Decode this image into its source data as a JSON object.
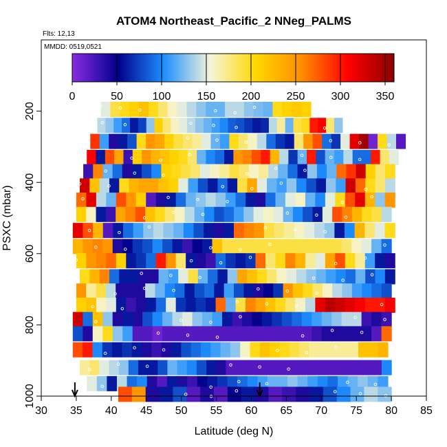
{
  "chart_data": {
    "type": "heatmap",
    "title": "ATOM4 Northeast_Pacific_2 NNeg_PALMS",
    "flights_label": "Flts: 12,13",
    "dates_label": "MMDD: 0519,0521",
    "xlabel": "Latitude (deg N)",
    "ylabel": "PSXC (mbar)",
    "xlim": [
      30,
      85
    ],
    "ylim": [
      1000,
      0
    ],
    "x_ticks": [
      "30",
      "35",
      "40",
      "45",
      "50",
      "55",
      "60",
      "65",
      "70",
      "75",
      "80",
      "85"
    ],
    "y_ticks": [
      "200",
      "400",
      "600",
      "800",
      "1000"
    ],
    "colorbar": {
      "min": 0,
      "max": 360,
      "ticks": [
        "0",
        "50",
        "100",
        "150",
        "200",
        "250",
        "300",
        "350"
      ],
      "colors": [
        "#8a2be2",
        "#00008b",
        "#1e90ff",
        "#f5f5dc",
        "#ffd700",
        "#ff8c00",
        "#ff0000",
        "#8b0000"
      ]
    },
    "markers": {
      "arrows_at_latitude": [
        34.8,
        61.2
      ]
    },
    "series": [
      {
        "p": 195,
        "lat": [
          38.5,
          68.5
        ],
        "v": [
          150,
          190,
          200,
          210,
          220,
          200,
          180,
          160,
          150,
          140,
          130,
          120,
          120,
          140,
          140,
          130,
          125,
          120,
          200,
          210,
          215,
          210
        ]
      },
      {
        "p": 240,
        "lat": [
          38.0,
          73.0
        ],
        "v": [
          140,
          130,
          110,
          90,
          60,
          75,
          130,
          210,
          180,
          160,
          150,
          140,
          130,
          120,
          110,
          100,
          85,
          80,
          70,
          60,
          65,
          140,
          170,
          120,
          190,
          200,
          300,
          310,
          180,
          130
        ]
      },
      {
        "p": 285,
        "lat": [
          37.0,
          82.0
        ],
        "v": [
          290,
          110,
          40,
          60,
          80,
          200,
          250,
          240,
          210,
          190,
          180,
          170,
          150,
          120,
          110,
          200,
          180,
          160,
          140,
          90,
          70,
          60,
          180,
          250,
          280,
          90,
          70,
          150,
          320,
          350,
          10,
          200,
          140,
          20
        ]
      },
      {
        "p": 330,
        "lat": [
          36.5,
          81.0
        ],
        "v": [
          310,
          60,
          280,
          240,
          30,
          210,
          250,
          230,
          220,
          210,
          200,
          180,
          120,
          100,
          90,
          60,
          250,
          260,
          280,
          300,
          230,
          140,
          70,
          120,
          300,
          80,
          120,
          110,
          140,
          90,
          90,
          300,
          180,
          150
        ]
      },
      {
        "p": 370,
        "lat": [
          36.0,
          80.5
        ],
        "v": [
          30,
          260,
          120,
          90,
          40,
          60,
          80,
          100,
          210,
          200,
          190,
          180,
          150,
          160,
          170,
          190,
          180,
          160,
          170,
          140,
          120,
          90,
          60,
          130,
          100,
          120,
          270,
          290,
          330,
          210,
          180,
          200
        ]
      },
      {
        "p": 410,
        "lat": [
          35.5,
          80.5
        ],
        "v": [
          330,
          220,
          140,
          60,
          200,
          230,
          240,
          240,
          220,
          210,
          150,
          110,
          80,
          60,
          90,
          60,
          190,
          240,
          150,
          120,
          110,
          130,
          100,
          80,
          60,
          130,
          110,
          330,
          270,
          200,
          180,
          140
        ]
      },
      {
        "p": 450,
        "lat": [
          35.0,
          80.5
        ],
        "v": [
          270,
          320,
          140,
          120,
          280,
          250,
          210,
          20,
          40,
          60,
          90,
          120,
          130,
          140,
          130,
          110,
          90,
          60,
          40,
          90,
          120,
          150,
          160,
          120,
          100,
          150,
          200,
          280,
          320,
          230,
          130,
          250
        ]
      },
      {
        "p": 490,
        "lat": [
          35.0,
          80.0
        ],
        "v": [
          210,
          160,
          60,
          30,
          240,
          260,
          280,
          220,
          200,
          180,
          160,
          140,
          120,
          100,
          80,
          90,
          110,
          130,
          150,
          160,
          150,
          120,
          100,
          80,
          60,
          150,
          280,
          260,
          230,
          200,
          190,
          140
        ]
      },
      {
        "p": 535,
        "lat": [
          34.5,
          80.5
        ],
        "v": [
          320,
          280,
          230,
          20,
          60,
          90,
          110,
          130,
          140,
          130,
          120,
          100,
          80,
          60,
          40,
          60,
          270,
          260,
          250,
          190,
          180,
          170,
          160,
          150,
          140,
          130,
          60,
          100,
          230,
          180,
          150,
          200
        ]
      },
      {
        "p": 580,
        "lat": [
          34.5,
          80.0
        ],
        "v": [
          230,
          250,
          260,
          250,
          40,
          50,
          70,
          80,
          100,
          80,
          60,
          30,
          50,
          60,
          220,
          190,
          190,
          190,
          190,
          190,
          190,
          190,
          190,
          190,
          190,
          190,
          190,
          180,
          160,
          150,
          120,
          90
        ]
      },
      {
        "p": 620,
        "lat": [
          35.0,
          80.5
        ],
        "v": [
          210,
          250,
          260,
          270,
          210,
          60,
          70,
          90,
          300,
          250,
          180,
          60,
          40,
          30,
          90,
          70,
          60,
          70,
          270,
          180,
          200,
          260,
          230,
          170,
          150,
          240,
          280,
          200,
          170,
          110,
          60,
          40
        ]
      },
      {
        "p": 665,
        "lat": [
          35.5,
          80.5
        ],
        "v": [
          200,
          230,
          260,
          90,
          60,
          60,
          40,
          40,
          120,
          110,
          150,
          190,
          120,
          90,
          60,
          130,
          240,
          220,
          200,
          180,
          160,
          150,
          140,
          130,
          120,
          110,
          100,
          90,
          120,
          80,
          100,
          60
        ]
      },
      {
        "p": 705,
        "lat": [
          35.0,
          80.0
        ],
        "v": [
          250,
          170,
          190,
          140,
          40,
          40,
          40,
          140,
          120,
          100,
          90,
          60,
          80,
          90,
          60,
          110,
          80,
          60,
          40,
          50,
          70,
          250,
          220,
          200,
          180,
          160,
          140,
          130,
          110,
          100,
          90,
          80
        ]
      },
      {
        "p": 745,
        "lat": [
          35.0,
          80.5
        ],
        "v": [
          210,
          220,
          160,
          150,
          60,
          30,
          40,
          60,
          90,
          150,
          70,
          60,
          70,
          60,
          270,
          120,
          190,
          260,
          240,
          220,
          200,
          180,
          160,
          140,
          320,
          340,
          330,
          320,
          310,
          300,
          300,
          310
        ]
      },
      {
        "p": 785,
        "lat": [
          34.5,
          80.0
        ],
        "v": [
          330,
          90,
          220,
          130,
          40,
          60,
          40,
          80,
          100,
          120,
          140,
          150,
          130,
          120,
          110,
          60,
          30,
          40,
          50,
          60,
          70,
          80,
          90,
          100,
          110,
          120,
          130,
          140,
          140,
          30,
          40,
          30
        ]
      },
      {
        "p": 825,
        "lat": [
          34.5,
          80.0
        ],
        "v": [
          80,
          40,
          160,
          200,
          130,
          110,
          20,
          20,
          10,
          20,
          20,
          20,
          20,
          20,
          20,
          20,
          20,
          20,
          20,
          20,
          20,
          20,
          20,
          20,
          30,
          40,
          40,
          40,
          40,
          40,
          20,
          270
        ]
      },
      {
        "p": 870,
        "lat": [
          34.5,
          79.5
        ],
        "v": [
          280,
          300,
          100,
          70,
          60,
          70,
          60,
          40,
          30,
          40,
          60,
          80,
          90,
          100,
          110,
          120,
          130,
          160,
          200,
          220,
          210,
          200,
          190,
          180,
          170,
          170,
          170,
          170,
          170,
          220,
          220,
          230
        ]
      },
      {
        "p": 920,
        "lat": [
          35.5,
          80.0
        ],
        "v": [
          170,
          180,
          150,
          140,
          130,
          90,
          60,
          60,
          80,
          120,
          110,
          100,
          80,
          60,
          40,
          20,
          20,
          20,
          20,
          20,
          20,
          20,
          20,
          20,
          20,
          20,
          20,
          20,
          20,
          20,
          20,
          100
        ]
      },
      {
        "p": 965,
        "lat": [
          36.5,
          79.5
        ],
        "v": [
          150,
          130,
          60,
          140,
          90,
          100,
          40,
          20,
          60,
          40,
          30,
          50,
          60,
          70,
          80,
          90,
          100,
          110,
          120,
          120,
          130,
          120,
          110,
          100,
          90,
          110,
          120,
          130,
          120,
          110
        ]
      },
      {
        "p": 995,
        "lat": [
          41.0,
          80.0
        ],
        "v": [
          280,
          250,
          40,
          60,
          80,
          20,
          40,
          20,
          50,
          60,
          40,
          20,
          30,
          40,
          60,
          80,
          100,
          120,
          140,
          130
        ]
      }
    ]
  }
}
